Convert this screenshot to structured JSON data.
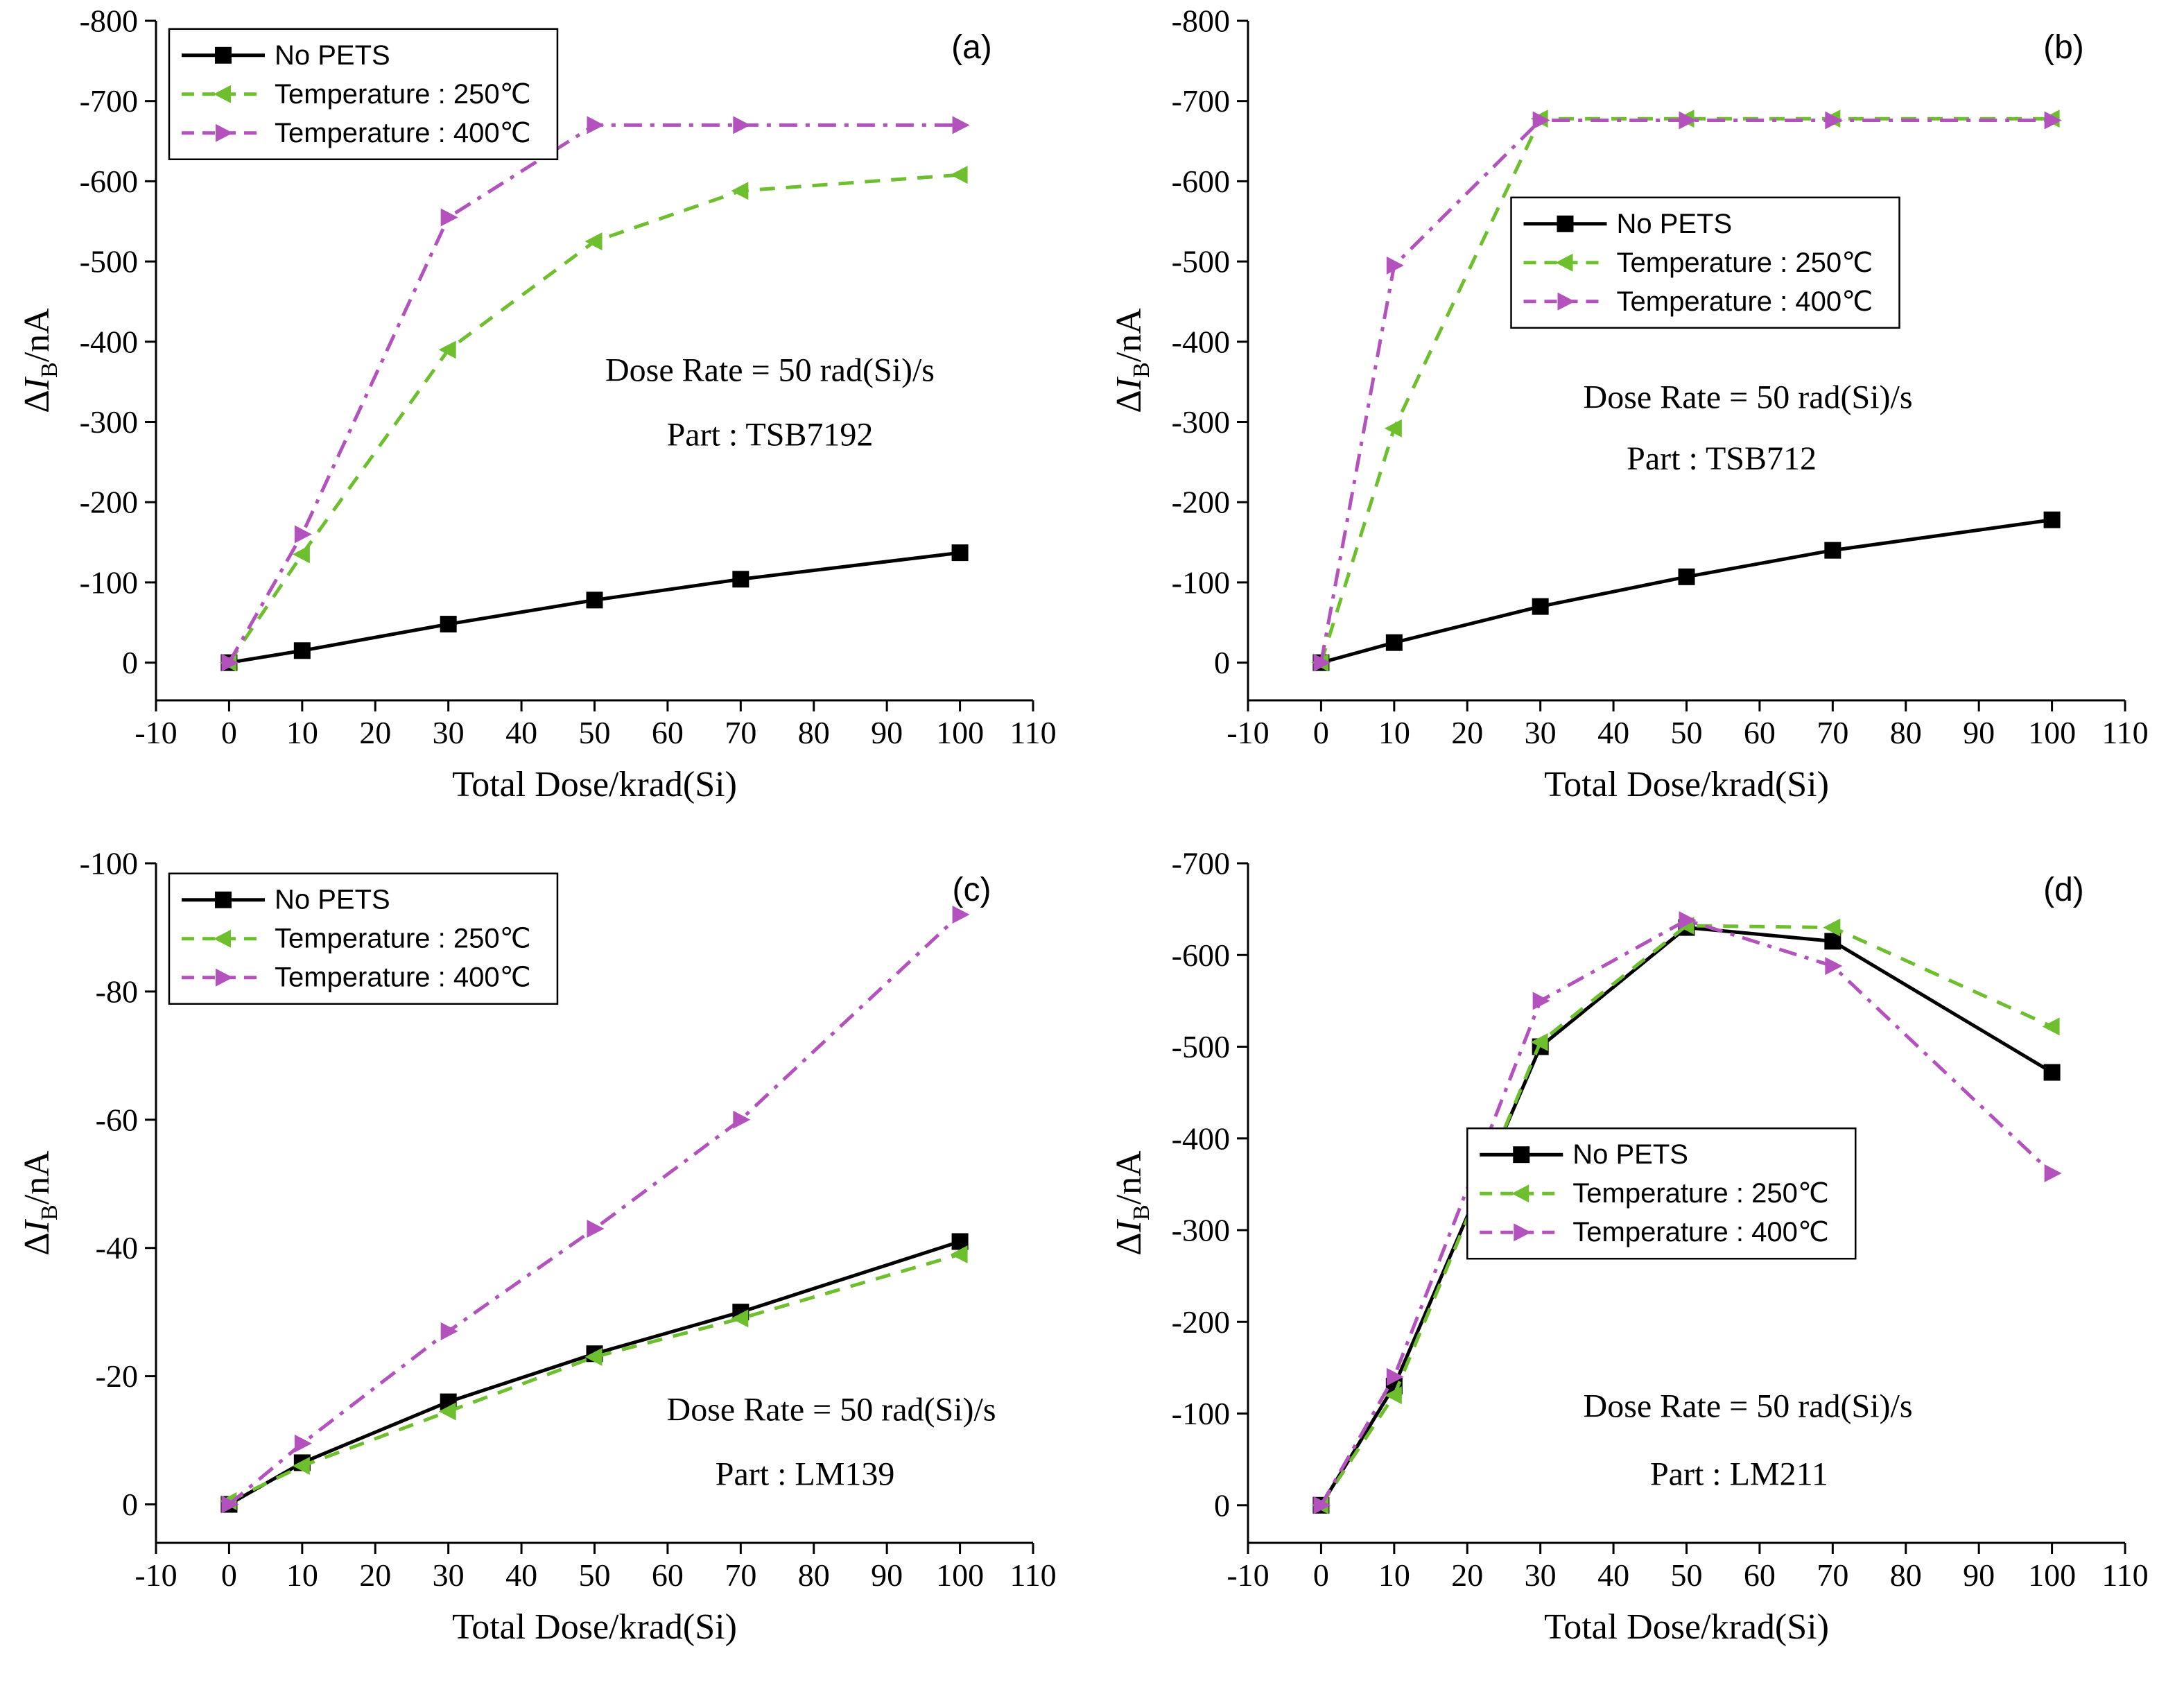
{
  "figure": {
    "background": "#ffffff"
  },
  "chart_data": [
    {
      "type": "line",
      "id": "a",
      "panel_label": "(a)",
      "xlabel": "Total Dose/krad(Si)",
      "ylabel": {
        "prefix": "Δ",
        "symbol": "I",
        "subscript": "B",
        "suffix": "/nA"
      },
      "xlim": [
        -10,
        110
      ],
      "xticks": [
        -10,
        0,
        10,
        20,
        30,
        40,
        50,
        60,
        70,
        80,
        90,
        100,
        110
      ],
      "ylim": {
        "top": -800,
        "bottom": 47
      },
      "yticks": [
        -800,
        -700,
        -600,
        -500,
        -400,
        -300,
        -200,
        -100,
        0
      ],
      "x": [
        0,
        10,
        30,
        50,
        70,
        100
      ],
      "series": [
        {
          "name": "No PETS",
          "color": "#000000",
          "dash": "solid",
          "marker": "square",
          "values": [
            0,
            -15,
            -48,
            -78,
            -104,
            -137
          ]
        },
        {
          "name": "Temperature : 250℃",
          "color": "#6dbf2e",
          "dash": "dash",
          "marker": "triangle-left",
          "values": [
            0,
            -135,
            -390,
            -525,
            -588,
            -608
          ]
        },
        {
          "name": "Temperature : 400℃",
          "color": "#b352bd",
          "dash": "dashdot",
          "marker": "triangle-right",
          "values": [
            0,
            -160,
            -555,
            -670,
            -670,
            -670
          ]
        }
      ],
      "legend": {
        "fx": 0.015,
        "fy": 0.012
      },
      "annotations": [
        {
          "text": "Dose Rate = 50 rad(Si)/s",
          "fx": 0.7,
          "fy": 0.53
        },
        {
          "text": "Part : TSB7192",
          "fx": 0.7,
          "fy": 0.625
        }
      ],
      "panel_label_pos": {
        "fx": 0.93,
        "fy": 0.055
      }
    },
    {
      "type": "line",
      "id": "b",
      "panel_label": "(b)",
      "xlabel": "Total Dose/krad(Si)",
      "ylabel": {
        "prefix": "Δ",
        "symbol": "I",
        "subscript": "B",
        "suffix": "/nA"
      },
      "xlim": [
        -10,
        110
      ],
      "xticks": [
        -10,
        0,
        10,
        20,
        30,
        40,
        50,
        60,
        70,
        80,
        90,
        100,
        110
      ],
      "ylim": {
        "top": -800,
        "bottom": 47
      },
      "yticks": [
        -800,
        -700,
        -600,
        -500,
        -400,
        -300,
        -200,
        -100,
        0
      ],
      "x": [
        0,
        10,
        30,
        50,
        70,
        100
      ],
      "series": [
        {
          "name": "No PETS",
          "color": "#000000",
          "dash": "solid",
          "marker": "square",
          "values": [
            0,
            -25,
            -70,
            -107,
            -140,
            -178
          ]
        },
        {
          "name": "Temperature : 250℃",
          "color": "#6dbf2e",
          "dash": "dash",
          "marker": "triangle-left",
          "values": [
            0,
            -292,
            -678,
            -678,
            -678,
            -678
          ]
        },
        {
          "name": "Temperature : 400℃",
          "color": "#b352bd",
          "dash": "dashdot",
          "marker": "triangle-right",
          "values": [
            0,
            -495,
            -676,
            -676,
            -676,
            -676
          ]
        }
      ],
      "legend": {
        "fx": 0.3,
        "fy": 0.26
      },
      "annotations": [
        {
          "text": "Dose Rate = 50 rad(Si)/s",
          "fx": 0.57,
          "fy": 0.57
        },
        {
          "text": "Part : TSB712",
          "fx": 0.54,
          "fy": 0.66
        }
      ],
      "panel_label_pos": {
        "fx": 0.93,
        "fy": 0.055
      }
    },
    {
      "type": "line",
      "id": "c",
      "panel_label": "(c)",
      "xlabel": "Total Dose/krad(Si)",
      "ylabel": {
        "prefix": "Δ",
        "symbol": "I",
        "subscript": "B",
        "suffix": "/nA"
      },
      "xlim": [
        -10,
        110
      ],
      "xticks": [
        -10,
        0,
        10,
        20,
        30,
        40,
        50,
        60,
        70,
        80,
        90,
        100,
        110
      ],
      "ylim": {
        "top": -100,
        "bottom": 6
      },
      "yticks": [
        -100,
        -80,
        -60,
        -40,
        -20,
        0
      ],
      "x": [
        0,
        10,
        30,
        50,
        70,
        100
      ],
      "series": [
        {
          "name": "No PETS",
          "color": "#000000",
          "dash": "solid",
          "marker": "square",
          "values": [
            0,
            -6.5,
            -16,
            -23.5,
            -30,
            -41
          ]
        },
        {
          "name": "Temperature : 250℃",
          "color": "#6dbf2e",
          "dash": "dash",
          "marker": "triangle-left",
          "values": [
            -0.5,
            -6,
            -14.5,
            -23,
            -29,
            -39
          ]
        },
        {
          "name": "Temperature : 400℃",
          "color": "#b352bd",
          "dash": "dashdot",
          "marker": "triangle-right",
          "values": [
            0,
            -9.5,
            -27,
            -43,
            -60,
            -92
          ]
        }
      ],
      "legend": {
        "fx": 0.015,
        "fy": 0.015
      },
      "annotations": [
        {
          "text": "Dose Rate = 50 rad(Si)/s",
          "fx": 0.77,
          "fy": 0.82
        },
        {
          "text": "Part : LM139",
          "fx": 0.74,
          "fy": 0.915
        }
      ],
      "panel_label_pos": {
        "fx": 0.93,
        "fy": 0.055
      }
    },
    {
      "type": "line",
      "id": "d",
      "panel_label": "(d)",
      "xlabel": "Total Dose/krad(Si)",
      "ylabel": {
        "prefix": "Δ",
        "symbol": "I",
        "subscript": "B",
        "suffix": "/nA"
      },
      "xlim": [
        -10,
        110
      ],
      "xticks": [
        -10,
        0,
        10,
        20,
        30,
        40,
        50,
        60,
        70,
        80,
        90,
        100,
        110
      ],
      "ylim": {
        "top": -700,
        "bottom": 41
      },
      "yticks": [
        -700,
        -600,
        -500,
        -400,
        -300,
        -200,
        -100,
        0
      ],
      "x": [
        0,
        10,
        30,
        50,
        70,
        100
      ],
      "series": [
        {
          "name": "No PETS",
          "color": "#000000",
          "dash": "solid",
          "marker": "square",
          "values": [
            0,
            -130,
            -500,
            -630,
            -615,
            -472
          ]
        },
        {
          "name": "Temperature : 250℃",
          "color": "#6dbf2e",
          "dash": "dash",
          "marker": "triangle-left",
          "values": [
            0,
            -120,
            -505,
            -632,
            -630,
            -522
          ]
        },
        {
          "name": "Temperature : 400℃",
          "color": "#b352bd",
          "dash": "dashdot",
          "marker": "triangle-right",
          "values": [
            0,
            -140,
            -550,
            -638,
            -588,
            -362
          ]
        }
      ],
      "legend": {
        "fx": 0.25,
        "fy": 0.39
      },
      "annotations": [
        {
          "text": "Dose Rate = 50 rad(Si)/s",
          "fx": 0.57,
          "fy": 0.815
        },
        {
          "text": "Part : LM211",
          "fx": 0.56,
          "fy": 0.915
        }
      ],
      "panel_label_pos": {
        "fx": 0.93,
        "fy": 0.055
      }
    }
  ]
}
